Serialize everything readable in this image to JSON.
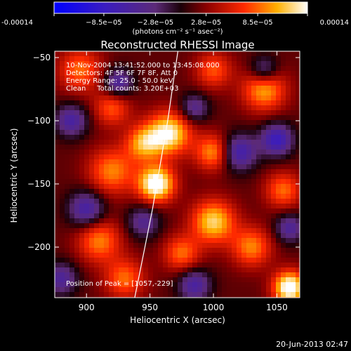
{
  "chart_data": {
    "type": "heatmap",
    "title": "Reconstructed RHESSI Image",
    "xlabel": "Heliocentric X (arcsec)",
    "ylabel": "Heliocentric Y (arcsec)",
    "xlim": [
      875,
      1068
    ],
    "ylim": [
      -240,
      -45
    ],
    "xticks": [
      900,
      950,
      1000,
      1050
    ],
    "yticks": [
      -200,
      -150,
      -100,
      -50
    ],
    "colorbar": {
      "range": [
        -0.00014,
        0.00014
      ],
      "tick_values": [
        -0.00014,
        -8.5e-05,
        -2.8e-05,
        2.8e-05,
        8.5e-05,
        0.00014
      ],
      "tick_labels": [
        "-0.00014",
        "−8.5e−05",
        "−2.8e−05",
        "2.8e−05",
        "8.5e−05",
        "0.00014"
      ],
      "unit_label": "(photons cm⁻² s⁻¹ asec⁻²)"
    },
    "annotations": [
      "10-Nov-2004 13:41:52.000 to 13:45:08.000",
      "Detectors: 4F 5F 6F 7F 8F, Att 0",
      "Energy Range: 25.0 - 50.0 keV",
      "Clean     Total counts: 3.20E+03"
    ],
    "peak_label": "Position of Peak = [1057,-229]",
    "limb_curve": [
      [
        938,
        -240
      ],
      [
        945,
        -205
      ],
      [
        952,
        -170
      ],
      [
        958,
        -135
      ],
      [
        964,
        -100
      ],
      [
        969,
        -65
      ],
      [
        972,
        -45
      ]
    ],
    "sources": [
      {
        "x": 955,
        "y": -150,
        "amp": 1.0,
        "s": 10
      },
      {
        "x": 965,
        "y": -110,
        "amp": 0.85,
        "s": 12
      },
      {
        "x": 945,
        "y": -118,
        "amp": 0.6,
        "s": 10
      },
      {
        "x": 1060,
        "y": -232,
        "amp": 1.0,
        "s": 9
      },
      {
        "x": 1000,
        "y": -180,
        "amp": 0.75,
        "s": 12
      },
      {
        "x": 1000,
        "y": -125,
        "amp": 0.6,
        "s": 10
      },
      {
        "x": 1040,
        "y": -75,
        "amp": 0.65,
        "s": 12
      },
      {
        "x": 895,
        "y": -60,
        "amp": 0.5,
        "s": 12
      },
      {
        "x": 920,
        "y": -140,
        "amp": 0.55,
        "s": 13
      },
      {
        "x": 910,
        "y": -195,
        "amp": 0.55,
        "s": 12
      },
      {
        "x": 930,
        "y": -225,
        "amp": 0.5,
        "s": 11
      },
      {
        "x": 1030,
        "y": -200,
        "amp": 0.55,
        "s": 11
      },
      {
        "x": 975,
        "y": -205,
        "amp": 0.5,
        "s": 10
      },
      {
        "x": 1000,
        "y": -60,
        "amp": 0.45,
        "s": 10
      },
      {
        "x": 920,
        "y": -90,
        "amp": 0.45,
        "s": 10
      },
      {
        "x": 1055,
        "y": -155,
        "amp": 0.5,
        "s": 10
      },
      {
        "x": 1020,
        "y": -125,
        "amp": -0.65,
        "s": 10
      },
      {
        "x": 900,
        "y": -170,
        "amp": -0.6,
        "s": 10
      },
      {
        "x": 888,
        "y": -100,
        "amp": -0.55,
        "s": 9
      },
      {
        "x": 925,
        "y": -70,
        "amp": -0.55,
        "s": 8
      },
      {
        "x": 1050,
        "y": -115,
        "amp": -0.7,
        "s": 9
      },
      {
        "x": 1040,
        "y": -60,
        "amp": -0.5,
        "s": 8
      },
      {
        "x": 985,
        "y": -90,
        "amp": -0.45,
        "s": 8
      },
      {
        "x": 985,
        "y": -230,
        "amp": -0.55,
        "s": 9
      },
      {
        "x": 1060,
        "y": -185,
        "amp": -0.5,
        "s": 8
      },
      {
        "x": 945,
        "y": -180,
        "amp": -0.45,
        "s": 9
      },
      {
        "x": 880,
        "y": -225,
        "amp": -0.5,
        "s": 9
      }
    ]
  },
  "footer": {
    "timestamp": "20-Jun-2013 02:47"
  }
}
